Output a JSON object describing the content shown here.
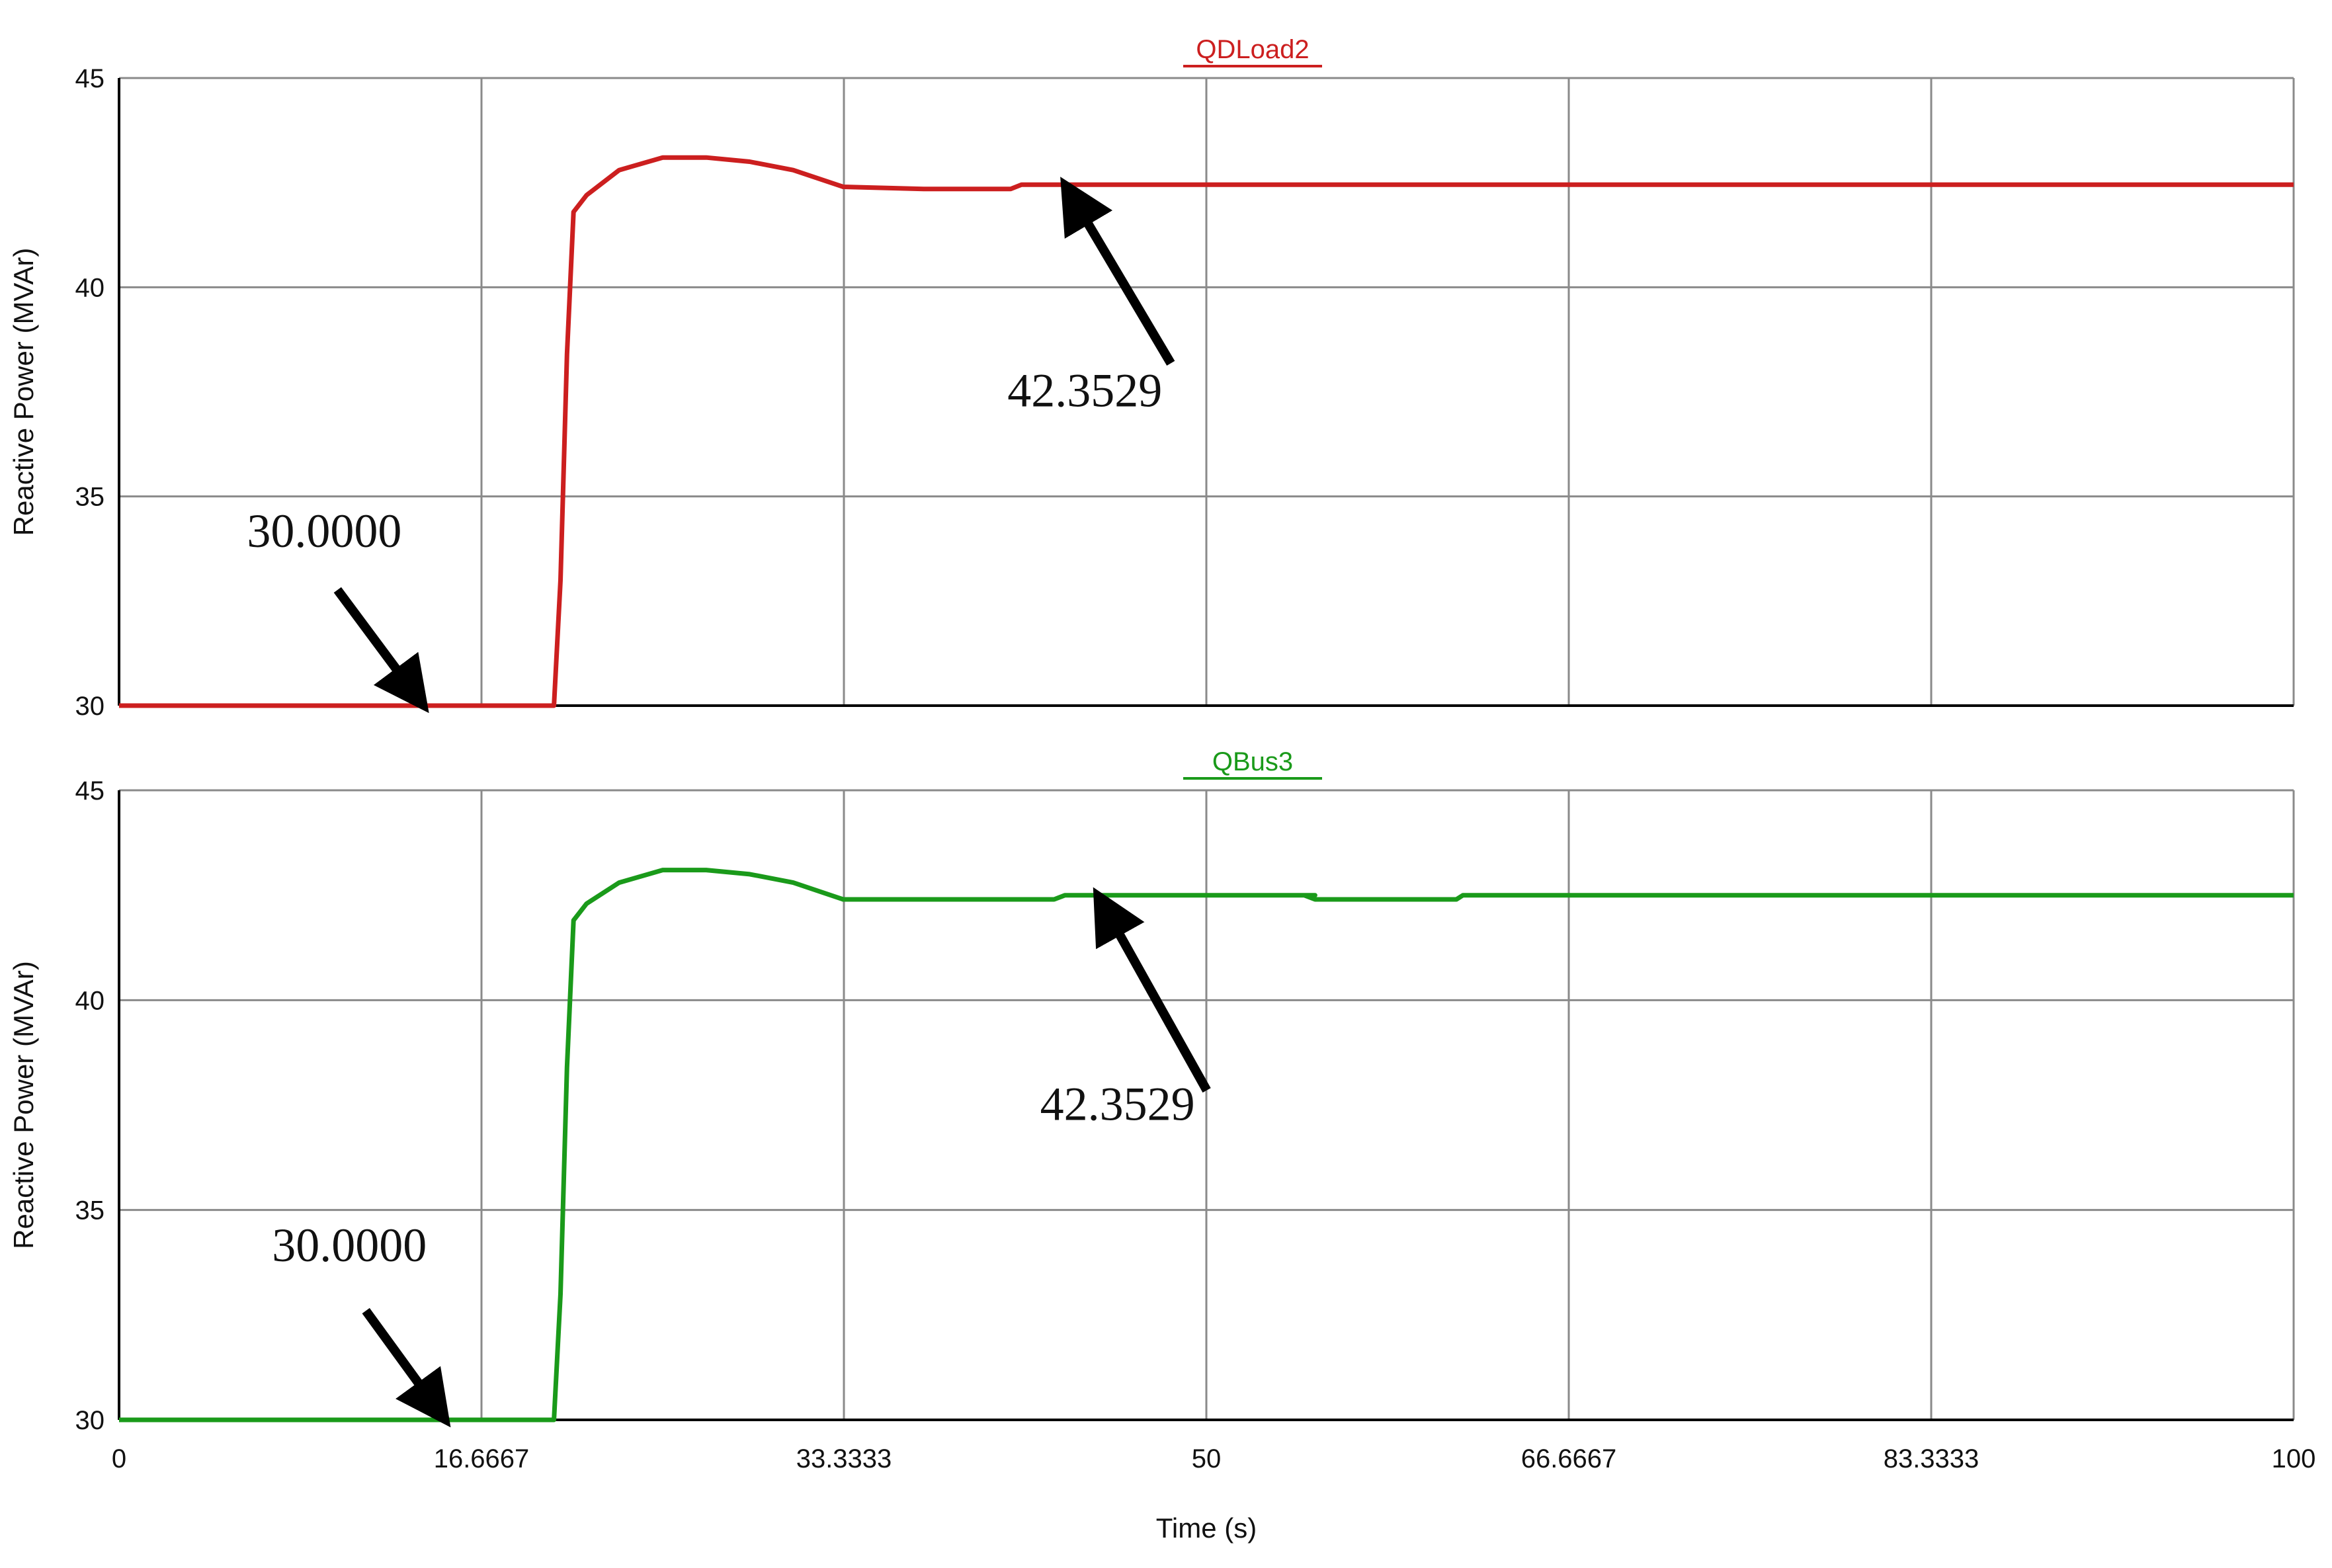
{
  "chart_data": [
    {
      "type": "line",
      "title": "QDLoad2",
      "xlabel": "",
      "ylabel": "Reactive Power (MVAr)",
      "xlim": [
        0,
        100
      ],
      "ylim": [
        30,
        45
      ],
      "x_ticks": [
        "0",
        "16.6667",
        "33.3333",
        "50",
        "66.6667",
        "83.3333",
        "100"
      ],
      "y_ticks": [
        "30",
        "35",
        "40",
        "45"
      ],
      "grid": true,
      "series": [
        {
          "name": "QDLoad2",
          "color": "#cc1f1f",
          "points": [
            [
              0,
              30
            ],
            [
              20,
              30
            ],
            [
              20.3,
              33
            ],
            [
              20.6,
              38.4
            ],
            [
              20.9,
              41.8
            ],
            [
              21.5,
              42.2
            ],
            [
              23,
              42.8
            ],
            [
              25,
              43.1
            ],
            [
              27,
              43.1
            ],
            [
              29,
              43.0
            ],
            [
              31,
              42.8
            ],
            [
              33.3,
              42.4
            ],
            [
              37,
              42.35
            ],
            [
              41,
              42.35
            ],
            [
              41.5,
              42.45
            ],
            [
              50,
              42.45
            ],
            [
              60,
              42.45
            ],
            [
              70,
              42.45
            ],
            [
              80,
              42.45
            ],
            [
              90,
              42.45
            ],
            [
              100,
              42.45
            ]
          ]
        }
      ],
      "annotations": [
        {
          "label": "30.0000",
          "x": 14,
          "y": 30
        },
        {
          "label": "42.3529",
          "x": 43.5,
          "y": 42.45
        }
      ]
    },
    {
      "type": "line",
      "title": "QBus3",
      "xlabel": "Time (s)",
      "ylabel": "Reactive Power (MVAr)",
      "xlim": [
        0,
        100
      ],
      "ylim": [
        30,
        45
      ],
      "x_ticks": [
        "0",
        "16.6667",
        "33.3333",
        "50",
        "66.6667",
        "83.3333",
        "100"
      ],
      "y_ticks": [
        "30",
        "35",
        "40",
        "45"
      ],
      "grid": true,
      "series": [
        {
          "name": "QBus3",
          "color": "#1a9a1a",
          "points": [
            [
              0,
              30
            ],
            [
              20,
              30
            ],
            [
              20.3,
              33
            ],
            [
              20.6,
              38.4
            ],
            [
              20.9,
              41.9
            ],
            [
              21.5,
              42.3
            ],
            [
              23,
              42.8
            ],
            [
              25,
              43.1
            ],
            [
              27,
              43.1
            ],
            [
              29,
              43.0
            ],
            [
              31,
              42.8
            ],
            [
              33.3,
              42.4
            ],
            [
              37,
              42.4
            ],
            [
              43,
              42.4
            ],
            [
              43.5,
              42.5
            ],
            [
              55,
              42.5
            ],
            [
              54.5,
              42.5
            ],
            [
              55,
              42.4
            ],
            [
              61.5,
              42.4
            ],
            [
              61.8,
              42.5
            ],
            [
              70,
              42.5
            ],
            [
              80,
              42.5
            ],
            [
              90,
              42.5
            ],
            [
              100,
              42.5
            ]
          ]
        }
      ],
      "annotations": [
        {
          "label": "30.0000",
          "x": 15,
          "y": 30
        },
        {
          "label": "42.3529",
          "x": 45,
          "y": 42.5
        }
      ]
    }
  ],
  "colors": {
    "background": "#ffffff",
    "grid": "#8a8a8a",
    "axis": "#000000"
  }
}
